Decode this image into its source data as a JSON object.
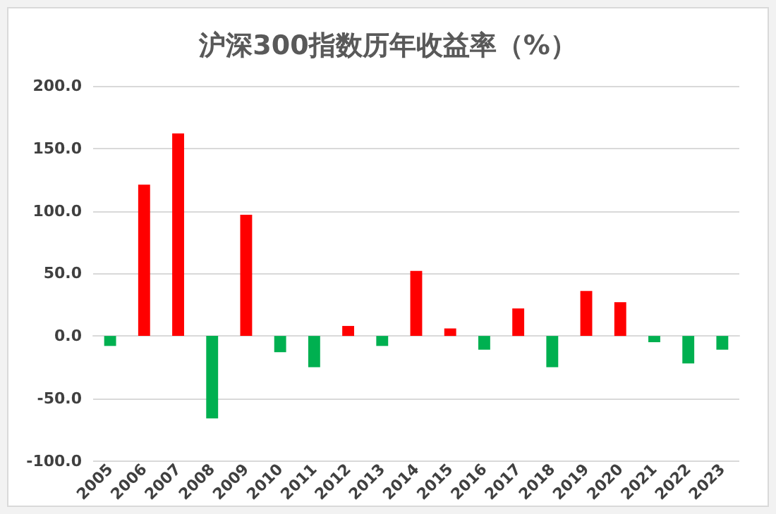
{
  "chart_data": {
    "type": "bar",
    "title": "沪深300指数历年收益率（%）",
    "categories": [
      "2005",
      "2006",
      "2007",
      "2008",
      "2009",
      "2010",
      "2011",
      "2012",
      "2013",
      "2014",
      "2015",
      "2016",
      "2017",
      "2018",
      "2019",
      "2020",
      "2021",
      "2022",
      "2023"
    ],
    "values": [
      -8,
      121,
      162,
      -66,
      97,
      -13,
      -25,
      8,
      -8,
      52,
      6,
      -11,
      22,
      -25,
      36,
      27,
      -5,
      -22,
      -11
    ],
    "colors": [
      "#00b050",
      "#ff0000",
      "#ff0000",
      "#00b050",
      "#ff0000",
      "#00b050",
      "#00b050",
      "#ff0000",
      "#00b050",
      "#ff0000",
      "#ff0000",
      "#00b050",
      "#ff0000",
      "#00b050",
      "#ff0000",
      "#ff0000",
      "#00b050",
      "#00b050",
      "#00b050"
    ],
    "ylim": [
      -100,
      200
    ],
    "yticks": [
      {
        "value": -100,
        "label": "-100.0"
      },
      {
        "value": -50,
        "label": "-50.0"
      },
      {
        "value": 0,
        "label": "0.0"
      },
      {
        "value": 50,
        "label": "50.0"
      },
      {
        "value": 100,
        "label": "100.0"
      },
      {
        "value": 150,
        "label": "150.0"
      },
      {
        "value": 200,
        "label": "200.0"
      }
    ],
    "grid": "y"
  }
}
